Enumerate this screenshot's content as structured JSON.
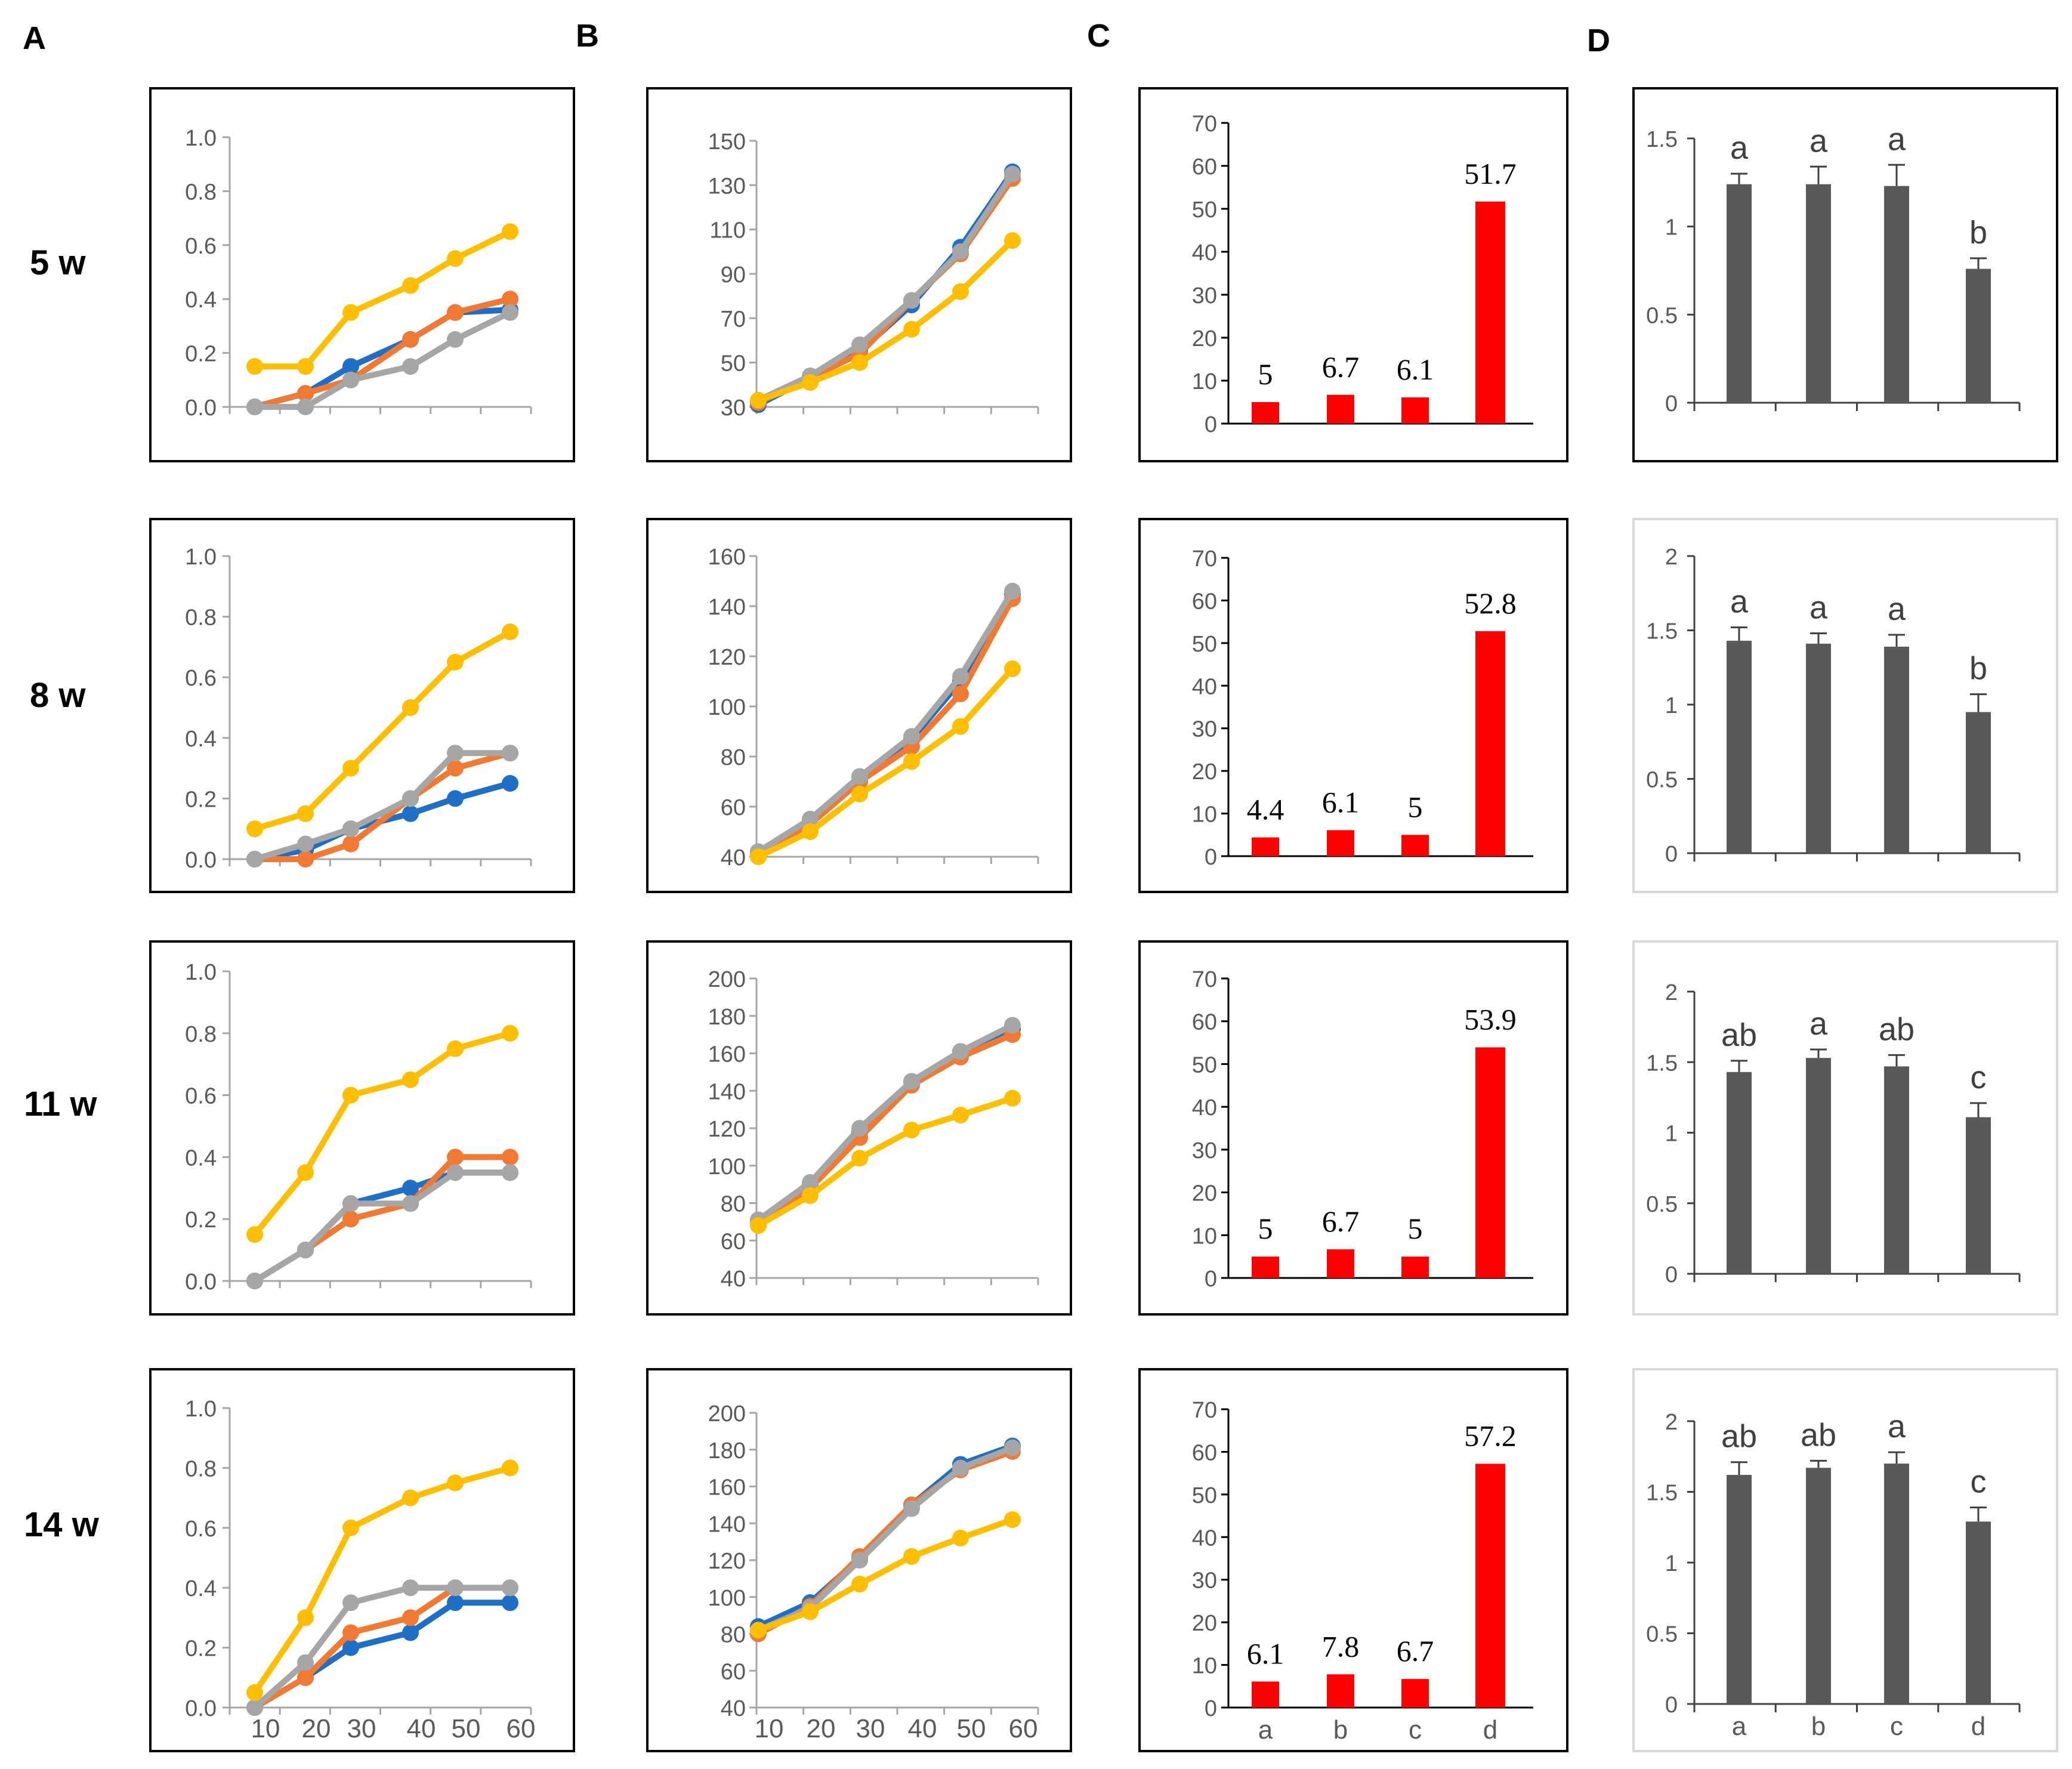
{
  "panel_letters": [
    "A",
    "B",
    "C",
    "D"
  ],
  "row_labels": [
    "5 w",
    "8 w",
    "11 w",
    "14 w"
  ],
  "colors": {
    "blue": "#1f6fc6",
    "orange": "#f07a33",
    "gray": "#a6a6a6",
    "yellow": "#ffbf00",
    "red": "#ff0000",
    "darkbar": "#595959",
    "axis": "#a6a6a6",
    "frame_dark": "#000000",
    "frame_light": "#d9d9d9"
  },
  "x_tick_labels": [
    "10",
    "20",
    "30",
    "40",
    "50",
    "60"
  ],
  "category_labels": [
    "a",
    "b",
    "c",
    "d"
  ],
  "chart_data": [
    {
      "panel": "A",
      "row": "5 w",
      "type": "line",
      "x": [
        10,
        20,
        30,
        40,
        50,
        60
      ],
      "ylim": [
        0,
        1
      ],
      "ytick_labels": [
        "0.0",
        "0.2",
        "0.4",
        "0.6",
        "0.8",
        "1.0"
      ],
      "series": [
        {
          "name": "blue",
          "values": [
            0,
            0.05,
            0.15,
            0.25,
            0.35,
            0.36
          ]
        },
        {
          "name": "orange",
          "values": [
            0,
            0.05,
            0.1,
            0.25,
            0.35,
            0.4
          ]
        },
        {
          "name": "gray",
          "values": [
            0,
            0,
            0.1,
            0.15,
            0.25,
            0.35
          ]
        },
        {
          "name": "yellow",
          "values": [
            0.15,
            0.15,
            0.35,
            0.45,
            0.55,
            0.65
          ]
        }
      ]
    },
    {
      "panel": "B",
      "row": "5 w",
      "type": "line",
      "x": [
        10,
        20,
        30,
        40,
        50,
        60
      ],
      "ylim": [
        30,
        150
      ],
      "ytick_labels": [
        "30",
        "50",
        "70",
        "90",
        "110",
        "130",
        "150"
      ],
      "series": [
        {
          "name": "blue",
          "values": [
            31,
            43,
            55,
            76,
            102,
            136
          ]
        },
        {
          "name": "orange",
          "values": [
            32,
            43,
            54,
            78,
            99,
            133
          ]
        },
        {
          "name": "gray",
          "values": [
            33,
            44,
            58,
            78,
            100,
            135
          ]
        },
        {
          "name": "yellow",
          "values": [
            33,
            41,
            50,
            65,
            82,
            105
          ]
        }
      ]
    },
    {
      "panel": "C",
      "row": "5 w",
      "type": "bar",
      "categories": [
        "a",
        "b",
        "c",
        "d"
      ],
      "values": [
        5,
        6.7,
        6.1,
        51.7
      ],
      "data_labels": [
        "5",
        "6.7",
        "6.1",
        "51.7"
      ],
      "ylim": [
        0,
        70
      ],
      "ytick_labels": [
        "0",
        "10",
        "20",
        "30",
        "40",
        "50",
        "60",
        "70"
      ]
    },
    {
      "panel": "D",
      "row": "5 w",
      "type": "bar",
      "categories": [
        "a",
        "b",
        "c",
        "d"
      ],
      "values": [
        1.24,
        1.24,
        1.23,
        0.76
      ],
      "errors": [
        0.06,
        0.1,
        0.12,
        0.06
      ],
      "significance": [
        "a",
        "a",
        "a",
        "b"
      ],
      "ylim": [
        0,
        1.5
      ],
      "ytick_labels": [
        "0",
        "0.5",
        "1",
        "1.5"
      ]
    },
    {
      "panel": "A",
      "row": "8 w",
      "type": "line",
      "x": [
        10,
        20,
        30,
        40,
        50,
        60
      ],
      "ylim": [
        0,
        1
      ],
      "ytick_labels": [
        "0.0",
        "0.2",
        "0.4",
        "0.6",
        "0.8",
        "1.0"
      ],
      "series": [
        {
          "name": "blue",
          "values": [
            0,
            0.03,
            0.1,
            0.15,
            0.2,
            0.25
          ]
        },
        {
          "name": "orange",
          "values": [
            0,
            0,
            0.05,
            0.2,
            0.3,
            0.35
          ]
        },
        {
          "name": "gray",
          "values": [
            0,
            0.05,
            0.1,
            0.2,
            0.35,
            0.35
          ]
        },
        {
          "name": "yellow",
          "values": [
            0.1,
            0.15,
            0.3,
            0.5,
            0.65,
            0.75
          ]
        }
      ]
    },
    {
      "panel": "B",
      "row": "8 w",
      "type": "line",
      "x": [
        10,
        20,
        30,
        40,
        50,
        60
      ],
      "ylim": [
        40,
        160
      ],
      "ytick_labels": [
        "40",
        "60",
        "80",
        "100",
        "120",
        "140",
        "160"
      ],
      "series": [
        {
          "name": "blue",
          "values": [
            42,
            55,
            72,
            87,
            110,
            145
          ]
        },
        {
          "name": "orange",
          "values": [
            41,
            53,
            70,
            84,
            105,
            143
          ]
        },
        {
          "name": "gray",
          "values": [
            42,
            55,
            72,
            88,
            112,
            146
          ]
        },
        {
          "name": "yellow",
          "values": [
            40,
            50,
            65,
            78,
            92,
            115
          ]
        }
      ]
    },
    {
      "panel": "C",
      "row": "8 w",
      "type": "bar",
      "categories": [
        "a",
        "b",
        "c",
        "d"
      ],
      "values": [
        4.4,
        6.1,
        5,
        52.8
      ],
      "data_labels": [
        "4.4",
        "6.1",
        "5",
        "52.8"
      ],
      "ylim": [
        0,
        70
      ],
      "ytick_labels": [
        "0",
        "10",
        "20",
        "30",
        "40",
        "50",
        "60",
        "70"
      ]
    },
    {
      "panel": "D",
      "row": "8 w",
      "type": "bar",
      "categories": [
        "a",
        "b",
        "c",
        "d"
      ],
      "values": [
        1.43,
        1.41,
        1.39,
        0.95
      ],
      "errors": [
        0.09,
        0.07,
        0.08,
        0.12
      ],
      "significance": [
        "a",
        "a",
        "a",
        "b"
      ],
      "ylim": [
        0,
        2
      ],
      "ytick_labels": [
        "0",
        "0.5",
        "1",
        "1.5",
        "2"
      ]
    },
    {
      "panel": "A",
      "row": "11 w",
      "type": "line",
      "x": [
        10,
        20,
        30,
        40,
        50,
        60
      ],
      "ylim": [
        0,
        1
      ],
      "ytick_labels": [
        "0.0",
        "0.2",
        "0.4",
        "0.6",
        "0.8",
        "1.0"
      ],
      "series": [
        {
          "name": "blue",
          "values": [
            0,
            0.1,
            0.25,
            0.3,
            0.35,
            0.35
          ]
        },
        {
          "name": "orange",
          "values": [
            0,
            0.1,
            0.2,
            0.25,
            0.4,
            0.4
          ]
        },
        {
          "name": "gray",
          "values": [
            0,
            0.1,
            0.25,
            0.25,
            0.35,
            0.35
          ]
        },
        {
          "name": "yellow",
          "values": [
            0.15,
            0.35,
            0.6,
            0.65,
            0.75,
            0.8
          ]
        }
      ]
    },
    {
      "panel": "B",
      "row": "11 w",
      "type": "line",
      "x": [
        10,
        20,
        30,
        40,
        50,
        60
      ],
      "ylim": [
        40,
        200
      ],
      "ytick_labels": [
        "40",
        "60",
        "80",
        "100",
        "120",
        "140",
        "160",
        "180",
        "200"
      ],
      "series": [
        {
          "name": "blue",
          "values": [
            71,
            90,
            118,
            145,
            161,
            173
          ]
        },
        {
          "name": "orange",
          "values": [
            69,
            88,
            115,
            143,
            158,
            170
          ]
        },
        {
          "name": "gray",
          "values": [
            71,
            91,
            120,
            145,
            161,
            175
          ]
        },
        {
          "name": "yellow",
          "values": [
            68,
            84,
            104,
            119,
            127,
            136
          ]
        }
      ]
    },
    {
      "panel": "C",
      "row": "11 w",
      "type": "bar",
      "categories": [
        "a",
        "b",
        "c",
        "d"
      ],
      "values": [
        5,
        6.7,
        5,
        53.9
      ],
      "data_labels": [
        "5",
        "6.7",
        "5",
        "53.9"
      ],
      "ylim": [
        0,
        70
      ],
      "ytick_labels": [
        "0",
        "10",
        "20",
        "30",
        "40",
        "50",
        "60",
        "70"
      ]
    },
    {
      "panel": "D",
      "row": "11 w",
      "type": "bar",
      "categories": [
        "a",
        "b",
        "c",
        "d"
      ],
      "values": [
        1.43,
        1.53,
        1.47,
        1.11
      ],
      "errors": [
        0.08,
        0.06,
        0.08,
        0.1
      ],
      "significance": [
        "ab",
        "a",
        "ab",
        "c"
      ],
      "ylim": [
        0,
        2
      ],
      "ytick_labels": [
        "0",
        "0.5",
        "1",
        "1.5",
        "2"
      ]
    },
    {
      "panel": "A",
      "row": "14 w",
      "type": "line",
      "x": [
        10,
        20,
        30,
        40,
        50,
        60
      ],
      "ylim": [
        0,
        1
      ],
      "ytick_labels": [
        "0.0",
        "0.2",
        "0.4",
        "0.6",
        "0.8",
        "1.0"
      ],
      "series": [
        {
          "name": "blue",
          "values": [
            0,
            0.1,
            0.2,
            0.25,
            0.35,
            0.35
          ]
        },
        {
          "name": "orange",
          "values": [
            0,
            0.1,
            0.25,
            0.3,
            0.4,
            0.4
          ]
        },
        {
          "name": "gray",
          "values": [
            0,
            0.15,
            0.35,
            0.4,
            0.4,
            0.4
          ]
        },
        {
          "name": "yellow",
          "values": [
            0.05,
            0.3,
            0.6,
            0.7,
            0.75,
            0.8
          ]
        }
      ]
    },
    {
      "panel": "B",
      "row": "14 w",
      "type": "line",
      "x": [
        10,
        20,
        30,
        40,
        50,
        60
      ],
      "ylim": [
        40,
        200
      ],
      "ytick_labels": [
        "40",
        "60",
        "80",
        "100",
        "120",
        "140",
        "160",
        "180",
        "200"
      ],
      "series": [
        {
          "name": "blue",
          "values": [
            84,
            97,
            121,
            150,
            172,
            182
          ]
        },
        {
          "name": "orange",
          "values": [
            80,
            95,
            122,
            150,
            169,
            179
          ]
        },
        {
          "name": "gray",
          "values": [
            82,
            94,
            120,
            148,
            170,
            181
          ]
        },
        {
          "name": "yellow",
          "values": [
            82,
            92,
            107,
            122,
            132,
            142
          ]
        }
      ]
    },
    {
      "panel": "C",
      "row": "14 w",
      "type": "bar",
      "categories": [
        "a",
        "b",
        "c",
        "d"
      ],
      "values": [
        6.1,
        7.8,
        6.7,
        57.2
      ],
      "data_labels": [
        "6.1",
        "7.8",
        "6.7",
        "57.2"
      ],
      "ylim": [
        0,
        70
      ],
      "ytick_labels": [
        "0",
        "10",
        "20",
        "30",
        "40",
        "50",
        "60",
        "70"
      ]
    },
    {
      "panel": "D",
      "row": "14 w",
      "type": "bar",
      "categories": [
        "a",
        "b",
        "c",
        "d"
      ],
      "values": [
        1.62,
        1.67,
        1.7,
        1.29
      ],
      "errors": [
        0.09,
        0.05,
        0.08,
        0.1
      ],
      "significance": [
        "ab",
        "ab",
        "a",
        "c"
      ],
      "ylim": [
        0,
        2
      ],
      "ytick_labels": [
        "0",
        "0.5",
        "1",
        "1.5",
        "2"
      ]
    }
  ]
}
